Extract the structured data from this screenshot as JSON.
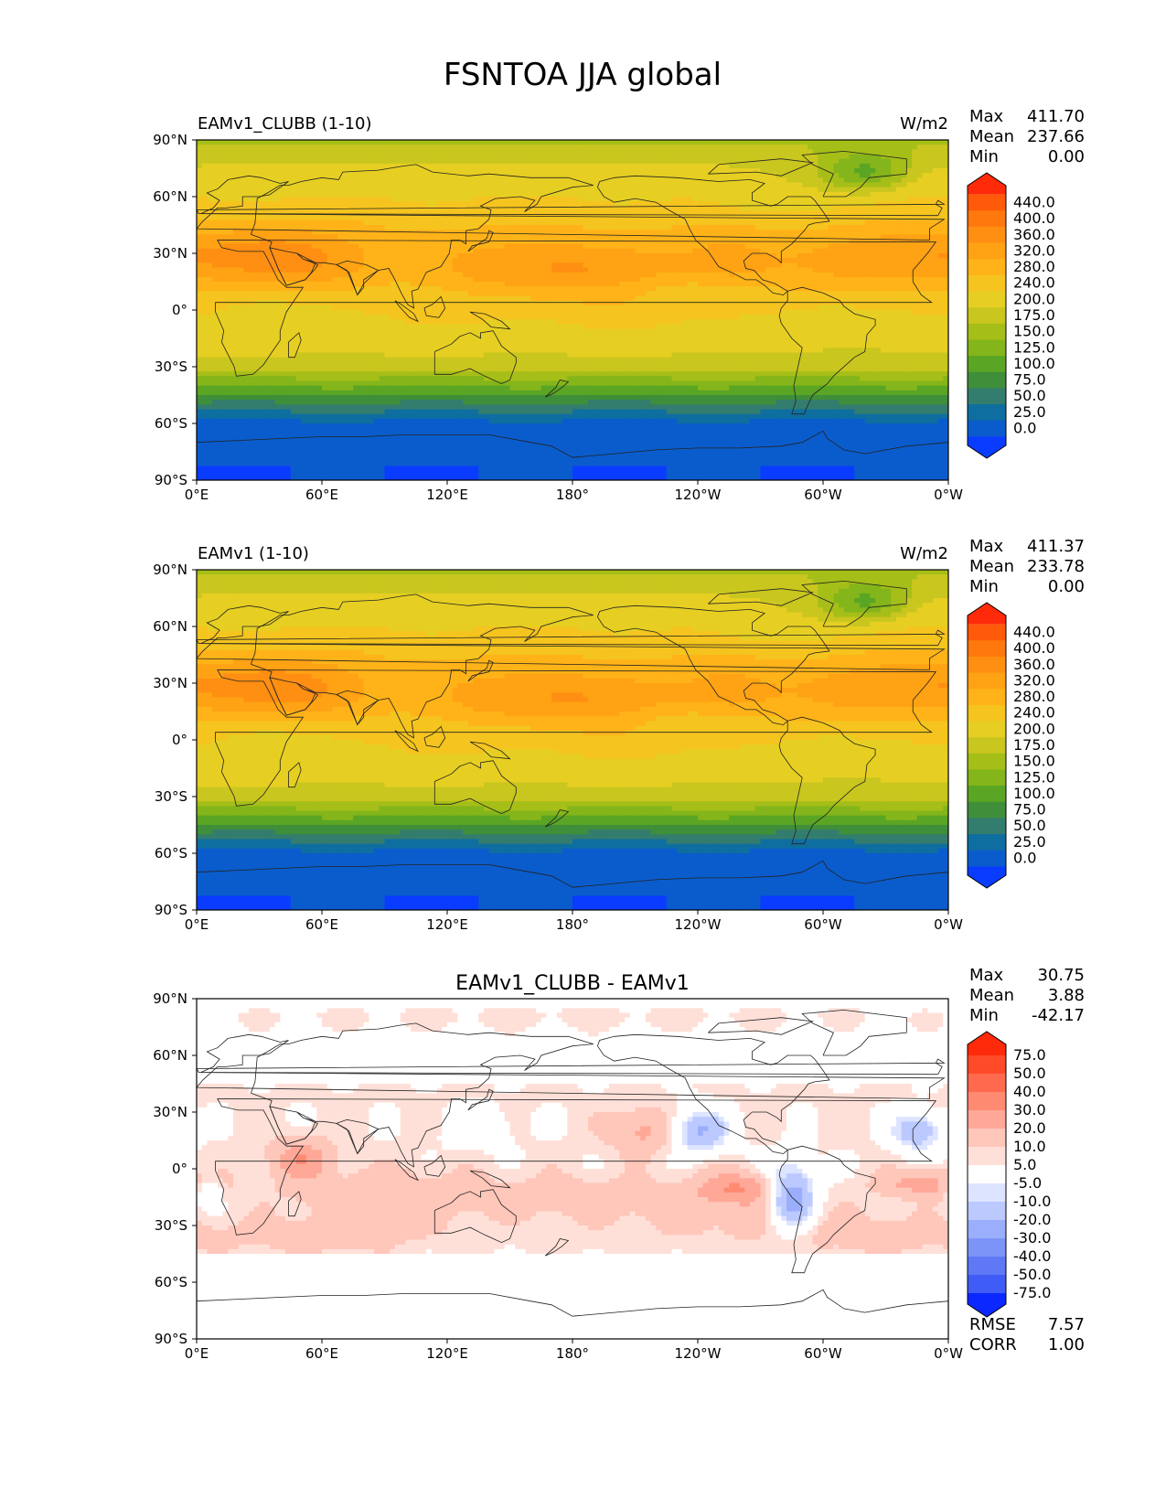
{
  "figure_title": "FSNTOA JJA global",
  "panels": [
    {
      "left_title": "EAMv1_CLUBB (1-10)",
      "center_title": "",
      "units": "W/m2",
      "stats": [
        {
          "label": "Max",
          "value": "411.70"
        },
        {
          "label": "Mean",
          "value": "237.66"
        },
        {
          "label": "Min",
          "value": "0.00"
        }
      ],
      "colorbar_ticks": [
        "440.0",
        "400.0",
        "360.0",
        "320.0",
        "280.0",
        "240.0",
        "200.0",
        "175.0",
        "150.0",
        "125.0",
        "100.0",
        "75.0",
        "50.0",
        "25.0",
        "0.0"
      ],
      "colorbar_colors": [
        "#ff2a0a",
        "#ff5a0a",
        "#ff780d",
        "#ff8f12",
        "#ffa214",
        "#ffb318",
        "#f5c41e",
        "#e6cf22",
        "#c9c61f",
        "#a6be18",
        "#84b51a",
        "#5aa524",
        "#3f8e3a",
        "#337d6e",
        "#0f6ea0",
        "#0a5ccc",
        "#0a3cff"
      ],
      "map_style": "absolute"
    },
    {
      "left_title": "EAMv1 (1-10)",
      "center_title": "",
      "units": "W/m2",
      "stats": [
        {
          "label": "Max",
          "value": "411.37"
        },
        {
          "label": "Mean",
          "value": "233.78"
        },
        {
          "label": "Min",
          "value": "0.00"
        }
      ],
      "colorbar_ticks": [
        "440.0",
        "400.0",
        "360.0",
        "320.0",
        "280.0",
        "240.0",
        "200.0",
        "175.0",
        "150.0",
        "125.0",
        "100.0",
        "75.0",
        "50.0",
        "25.0",
        "0.0"
      ],
      "colorbar_colors": [
        "#ff2a0a",
        "#ff5a0a",
        "#ff780d",
        "#ff8f12",
        "#ffa214",
        "#ffb318",
        "#f5c41e",
        "#e6cf22",
        "#c9c61f",
        "#a6be18",
        "#84b51a",
        "#5aa524",
        "#3f8e3a",
        "#337d6e",
        "#0f6ea0",
        "#0a5ccc",
        "#0a3cff"
      ],
      "map_style": "absolute"
    },
    {
      "left_title": "",
      "center_title": "EAMv1_CLUBB - EAMv1",
      "units": "",
      "stats": [
        {
          "label": "Max",
          "value": "30.75"
        },
        {
          "label": "Mean",
          "value": "3.88"
        },
        {
          "label": "Min",
          "value": "-42.17"
        }
      ],
      "extra_stats": [
        {
          "label": "RMSE",
          "value": "7.57"
        },
        {
          "label": "CORR",
          "value": "1.00"
        }
      ],
      "colorbar_ticks": [
        "75.0",
        "50.0",
        "40.0",
        "30.0",
        "20.0",
        "10.0",
        "5.0",
        "-5.0",
        "-10.0",
        "-20.0",
        "-30.0",
        "-40.0",
        "-50.0",
        "-75.0"
      ],
      "colorbar_colors": [
        "#ff2a0a",
        "#ff4a2a",
        "#ff6a4e",
        "#ff8a72",
        "#ffa898",
        "#ffc6ba",
        "#ffe0d8",
        "#ffffff",
        "#dde4ff",
        "#bcc9ff",
        "#9aaefc",
        "#7c94f8",
        "#5e78f6",
        "#3f5cf6",
        "#0a28ff"
      ],
      "map_style": "difference"
    }
  ],
  "chart_data": [
    {
      "type": "heatmap",
      "title": "EAMv1_CLUBB (1-10)",
      "units": "W/m2",
      "x_ticks": [
        "0°E",
        "60°E",
        "120°E",
        "180°",
        "120°W",
        "60°W",
        "0°W"
      ],
      "y_ticks": [
        "90°N",
        "60°N",
        "30°N",
        "0°",
        "30°S",
        "60°S",
        "90°S"
      ],
      "xlim": [
        0,
        360
      ],
      "ylim": [
        -90,
        90
      ],
      "levels": [
        0,
        25,
        50,
        75,
        100,
        125,
        150,
        175,
        200,
        240,
        280,
        320,
        360,
        400,
        440
      ],
      "max": 411.7,
      "mean": 237.66,
      "min": 0.0
    },
    {
      "type": "heatmap",
      "title": "EAMv1 (1-10)",
      "units": "W/m2",
      "x_ticks": [
        "0°E",
        "60°E",
        "120°E",
        "180°",
        "120°W",
        "60°W",
        "0°W"
      ],
      "y_ticks": [
        "90°N",
        "60°N",
        "30°N",
        "0°",
        "30°S",
        "60°S",
        "90°S"
      ],
      "xlim": [
        0,
        360
      ],
      "ylim": [
        -90,
        90
      ],
      "levels": [
        0,
        25,
        50,
        75,
        100,
        125,
        150,
        175,
        200,
        240,
        280,
        320,
        360,
        400,
        440
      ],
      "max": 411.37,
      "mean": 233.78,
      "min": 0.0
    },
    {
      "type": "heatmap",
      "title": "EAMv1_CLUBB - EAMv1",
      "units": "",
      "x_ticks": [
        "0°E",
        "60°E",
        "120°E",
        "180°",
        "120°W",
        "60°W",
        "0°W"
      ],
      "y_ticks": [
        "90°N",
        "60°N",
        "30°N",
        "0°",
        "30°S",
        "60°S",
        "90°S"
      ],
      "xlim": [
        0,
        360
      ],
      "ylim": [
        -90,
        90
      ],
      "levels": [
        -75,
        -50,
        -40,
        -30,
        -20,
        -10,
        -5,
        5,
        10,
        20,
        30,
        40,
        50,
        75
      ],
      "max": 30.75,
      "mean": 3.88,
      "min": -42.17,
      "rmse": 7.57,
      "corr": 1.0
    }
  ]
}
